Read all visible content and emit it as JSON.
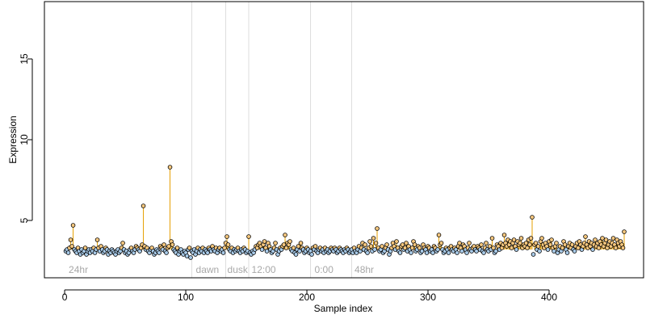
{
  "chart_data": {
    "type": "scatter",
    "x_label": "Sample index",
    "y_label": "Expression",
    "xlim": [
      -16.7,
      478
    ],
    "ylim": [
      1.45,
      18.55
    ],
    "xticks": [
      0,
      100,
      200,
      300,
      400
    ],
    "yticks": [
      5,
      10,
      15
    ],
    "baseline": 3.2,
    "colors": {
      "segment": "#e69f00",
      "above": "#f5c77e",
      "below": "#a9cbe9",
      "vline": "#dddddd"
    },
    "vlines": [
      105,
      133,
      152,
      203,
      237
    ],
    "annotations": [
      {
        "text": "24hr",
        "x": 2
      },
      {
        "text": "dawn",
        "x": 107
      },
      {
        "text": "dusk",
        "x": 133
      },
      {
        "text": "12:00",
        "x": 153
      },
      {
        "text": "0:00",
        "x": 205
      },
      {
        "text": "48hr",
        "x": 238
      }
    ],
    "values": [
      3.1,
      3.2,
      3.0,
      3.3,
      3.8,
      3.4,
      4.7,
      3.2,
      3.1,
      3.0,
      3.3,
      3.1,
      2.9,
      3.2,
      3.0,
      3.1,
      3.3,
      2.9,
      3.1,
      3.2,
      3.0,
      3.2,
      3.1,
      3.3,
      3.0,
      3.2,
      3.8,
      3.3,
      3.1,
      3.4,
      3.2,
      3.0,
      3.1,
      3.3,
      3.2,
      2.9,
      3.1,
      3.0,
      3.2,
      3.1,
      3.0,
      2.9,
      3.1,
      3.2,
      3.0,
      3.1,
      3.3,
      3.6,
      3.2,
      3.0,
      3.1,
      2.9,
      3.0,
      3.2,
      3.3,
      3.1,
      3.0,
      3.2,
      3.4,
      3.3,
      3.2,
      3.1,
      3.3,
      3.5,
      5.9,
      3.4,
      3.2,
      3.3,
      3.1,
      3.0,
      3.2,
      3.3,
      3.1,
      2.9,
      3.0,
      3.2,
      3.1,
      3.0,
      3.4,
      3.3,
      3.2,
      3.5,
      3.1,
      3.0,
      3.3,
      3.4,
      8.3,
      3.7,
      3.5,
      3.2,
      3.1,
      3.0,
      3.3,
      2.9,
      3.1,
      3.2,
      3.0,
      2.9,
      3.1,
      3.0,
      2.8,
      3.2,
      3.3,
      2.7,
      3.1,
      3.0,
      3.2,
      2.9,
      3.1,
      3.3,
      3.0,
      3.2,
      3.1,
      3.3,
      3.0,
      3.2,
      3.1,
      3.0,
      3.3,
      3.2,
      3.1,
      3.4,
      3.2,
      3.1,
      3.3,
      3.0,
      3.2,
      3.3,
      3.1,
      3.2,
      3.0,
      3.3,
      3.6,
      4.0,
      3.5,
      3.2,
      3.1,
      3.3,
      3.0,
      3.2,
      3.1,
      3.2,
      3.3,
      3.1,
      3.0,
      3.2,
      3.1,
      3.3,
      3.2,
      3.0,
      3.1,
      4.0,
      3.0,
      2.9,
      3.1,
      3.0,
      3.2,
      3.4,
      3.3,
      3.5,
      3.6,
      3.4,
      3.2,
      3.5,
      3.7,
      3.3,
      3.1,
      3.6,
      3.4,
      3.2,
      3.0,
      3.1,
      3.3,
      3.6,
      3.2,
      2.9,
      3.1,
      3.3,
      3.2,
      3.4,
      3.5,
      4.1,
      3.3,
      3.6,
      3.5,
      3.7,
      3.2,
      3.1,
      3.3,
      3.0,
      2.9,
      3.2,
      3.4,
      3.1,
      3.6,
      3.3,
      3.2,
      3.0,
      3.1,
      3.3,
      3.2,
      3.0,
      3.1,
      2.9,
      3.3,
      3.2,
      3.4,
      3.1,
      3.0,
      3.2,
      3.3,
      3.1,
      3.2,
      3.0,
      3.3,
      3.1,
      3.2,
      3.0,
      3.1,
      3.3,
      3.2,
      3.1,
      3.3,
      3.2,
      3.0,
      3.1,
      3.3,
      3.2,
      3.1,
      3.0,
      3.2,
      3.1,
      3.3,
      3.2,
      3.0,
      3.1,
      3.2,
      3.0,
      3.3,
      3.1,
      3.0,
      3.2,
      3.4,
      3.1,
      3.3,
      3.6,
      3.2,
      3.5,
      3.1,
      3.0,
      3.3,
      3.7,
      3.4,
      3.1,
      3.9,
      3.2,
      3.6,
      4.5,
      3.3,
      3.1,
      3.2,
      3.4,
      3.0,
      3.1,
      3.3,
      3.5,
      3.2,
      2.9,
      3.1,
      3.3,
      3.6,
      3.4,
      3.2,
      3.7,
      3.3,
      3.1,
      3.0,
      3.4,
      3.5,
      3.2,
      3.3,
      3.6,
      3.1,
      3.4,
      3.2,
      3.0,
      3.3,
      3.7,
      3.5,
      3.1,
      3.2,
      3.4,
      3.3,
      3.0,
      3.1,
      3.5,
      3.3,
      3.2,
      3.0,
      3.4,
      3.3,
      3.1,
      3.2,
      3.0,
      3.4,
      3.3,
      3.1,
      3.2,
      4.1,
      3.5,
      3.6,
      3.2,
      3.0,
      3.1,
      3.3,
      3.2,
      3.0,
      3.3,
      3.4,
      3.2,
      3.1,
      3.3,
      3.2,
      3.0,
      3.4,
      3.6,
      3.3,
      3.1,
      3.5,
      3.4,
      3.2,
      3.0,
      3.3,
      3.6,
      3.2,
      3.1,
      3.3,
      3.4,
      3.2,
      3.1,
      3.4,
      3.3,
      3.2,
      3.5,
      3.1,
      3.0,
      3.3,
      3.6,
      3.2,
      3.1,
      3.4,
      3.2,
      3.9,
      3.3,
      3.0,
      3.1,
      3.5,
      3.4,
      3.2,
      3.6,
      3.3,
      3.5,
      4.1,
      3.6,
      3.4,
      3.8,
      3.5,
      3.7,
      3.3,
      3.6,
      3.8,
      3.4,
      3.2,
      3.7,
      3.5,
      3.6,
      3.9,
      3.3,
      3.5,
      3.4,
      3.6,
      3.3,
      3.8,
      3.5,
      3.9,
      5.2,
      2.9,
      3.5,
      3.6,
      3.2,
      3.4,
      3.1,
      3.7,
      3.9,
      3.5,
      3.3,
      3.6,
      3.4,
      3.2,
      3.7,
      3.5,
      3.8,
      3.3,
      3.1,
      3.4,
      3.6,
      3.0,
      3.2,
      3.4,
      3.1,
      3.3,
      3.7,
      3.5,
      3.2,
      3.0,
      3.4,
      3.6,
      3.3,
      3.5,
      3.2,
      3.1,
      3.4,
      3.6,
      3.3,
      3.7,
      3.5,
      3.2,
      3.4,
      3.6,
      4.0,
      3.5,
      3.3,
      3.7,
      3.4,
      3.6,
      3.2,
      3.5,
      3.8,
      3.4,
      3.6,
      3.3,
      3.7,
      3.5,
      3.9,
      3.4,
      3.6,
      3.8,
      3.3,
      3.5,
      3.7,
      3.4,
      3.6,
      3.9,
      3.5,
      3.3,
      3.8,
      3.6,
      3.4,
      3.7,
      3.5,
      3.3,
      4.3
    ]
  }
}
